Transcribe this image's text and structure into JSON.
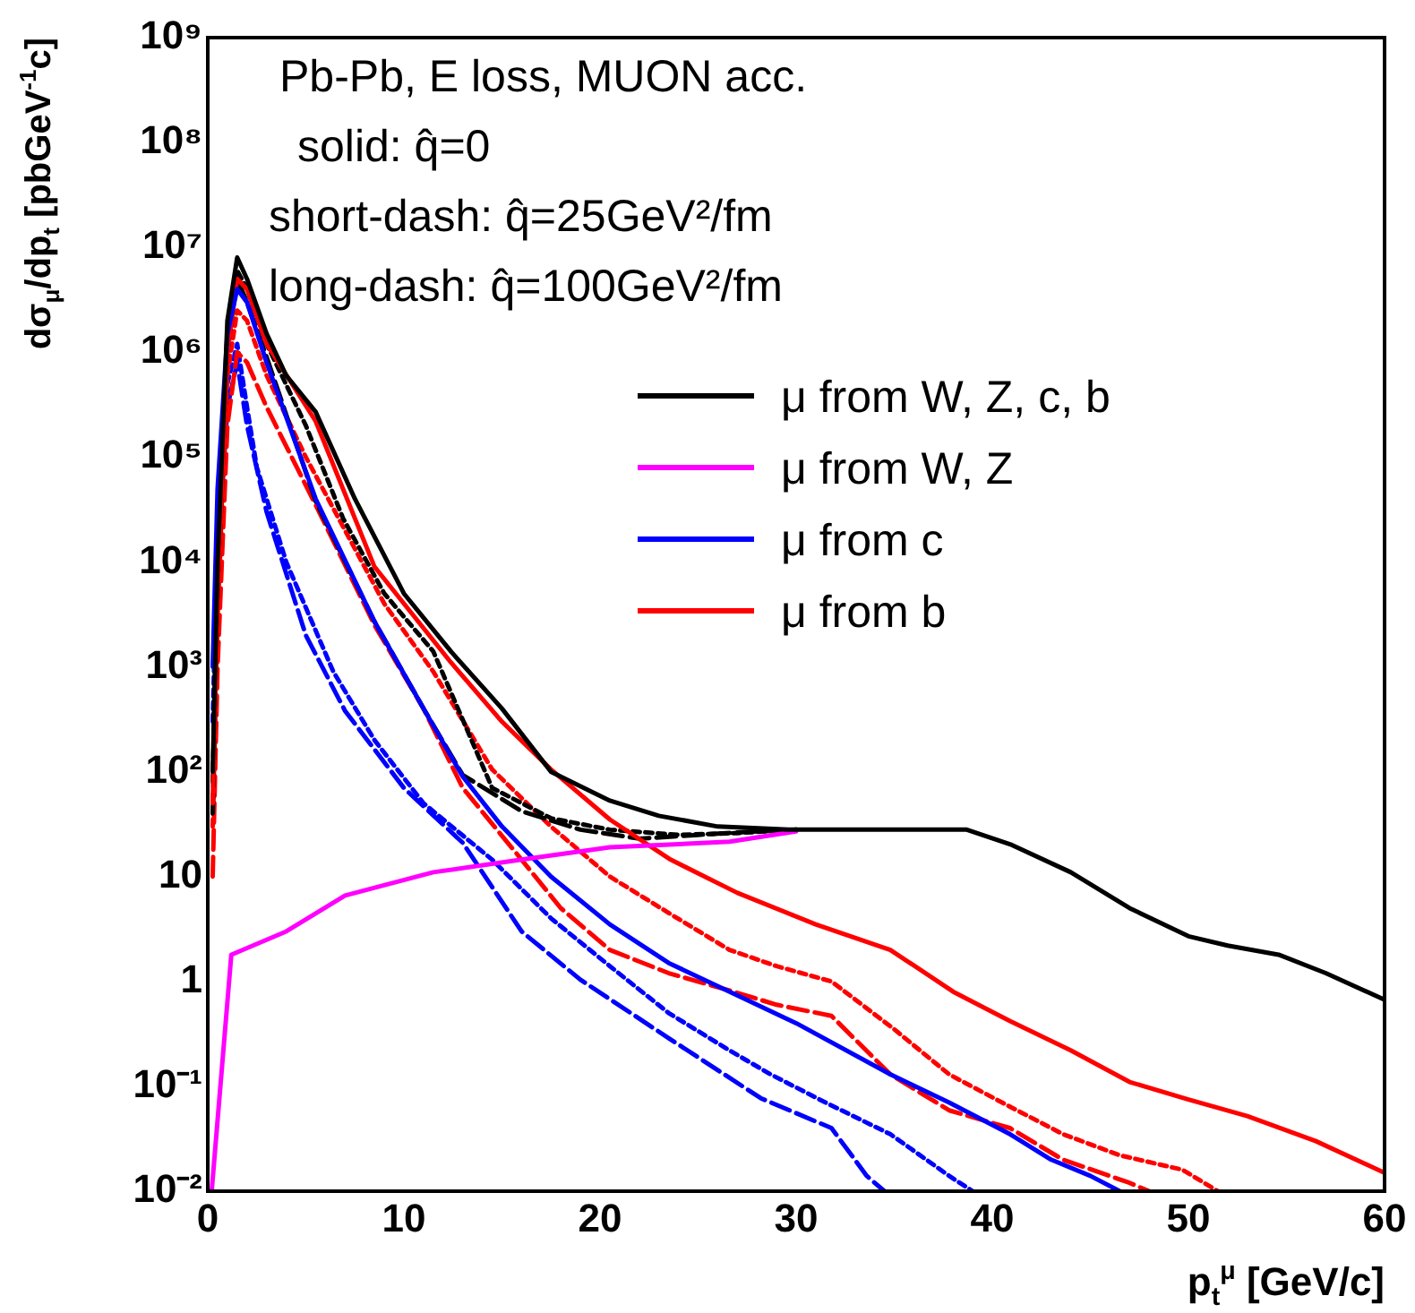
{
  "chart_data": {
    "type": "line",
    "xlabel": "p$_{t}$$^{μ}$ [GeV/c]",
    "ylabel": "dσ$_{μ}$/dp$_{t}$ [pbGeV$^{-1}$c]",
    "annotations": [
      "Pb-Pb, E loss, MUON acc.",
      "solid: q̂=0",
      "short-dash: q̂=25GeV²/fm",
      "long-dash: q̂=100GeV²/fm"
    ],
    "log": "y",
    "legend": "top right",
    "marker": "none",
    "xlim": [
      0,
      60
    ],
    "xticks": [
      0,
      10,
      20,
      30,
      40,
      50,
      60
    ],
    "ylim": [
      0.01,
      1000000000
    ],
    "yticks": [
      {
        "value": 0.01,
        "label": "10⁻²"
      },
      {
        "value": 0.1,
        "label": "10⁻¹"
      },
      1,
      10,
      {
        "value": 100,
        "label": "10²"
      },
      {
        "value": 1000,
        "label": "10³"
      },
      {
        "value": 10000,
        "label": "10⁴"
      },
      {
        "value": 100000,
        "label": "10⁵"
      },
      {
        "value": 1000000,
        "label": "10⁶"
      },
      {
        "value": 10000000,
        "label": "10⁷"
      },
      {
        "value": 100000000,
        "label": "10⁸"
      },
      {
        "value": 1000000000,
        "label": "10⁹"
      }
    ],
    "series": [
      {
        "name": "μ from W, Z, c, b",
        "color": "#000000",
        "line_style": "solid",
        "x": [
          0.25,
          0.5,
          1,
          1.5,
          2,
          3,
          4,
          5.5,
          7.5,
          10,
          12.4,
          15,
          17.5,
          20.5,
          23,
          26,
          29.6,
          35,
          38.7,
          41,
          44,
          47,
          50,
          52,
          54.6,
          57,
          60
        ],
        "values": [
          100,
          10000,
          2000000,
          8000000,
          5000000,
          1500000,
          600000,
          270000,
          40000,
          5000,
          1400,
          400,
          100,
          53,
          38,
          30,
          28,
          28,
          28,
          20,
          11,
          5,
          2.7,
          2.2,
          1.8,
          1.2,
          0.67
        ]
      },
      {
        "name": "μ from W, Z",
        "color": "#ff00ff",
        "line_style": "solid",
        "x": [
          0.2,
          0.6,
          1.2,
          4,
          7,
          11.5,
          16,
          20.5,
          26.6,
          30
        ],
        "values": [
          0.01,
          0.08,
          1.8,
          3,
          6.6,
          11,
          14.5,
          19,
          21.5,
          27
        ]
      },
      {
        "name": "μ from c",
        "color": "#0000ff",
        "line_style": "solid",
        "x": [
          0.25,
          0.5,
          1,
          1.5,
          2,
          3,
          5.5,
          8.5,
          11,
          13,
          15,
          17.5,
          20.5,
          23.5,
          26.6,
          30,
          34.8,
          37.8,
          40.9,
          43,
          45,
          46.5
        ],
        "values": [
          1000,
          50000,
          1500000,
          4000000,
          3000000,
          800000,
          40000,
          2700,
          400,
          90,
          30,
          10,
          3.5,
          1.5,
          0.8,
          0.4,
          0.13,
          0.07,
          0.035,
          0.02,
          0.014,
          0.01
        ]
      },
      {
        "name": "μ from b",
        "color": "#ff0000",
        "line_style": "solid",
        "x": [
          0.25,
          0.5,
          1,
          1.5,
          2,
          3,
          5.5,
          8.5,
          12.4,
          15,
          17.5,
          20.5,
          23.6,
          27,
          31,
          34.8,
          38,
          40.9,
          44,
          47,
          50,
          53,
          56.5,
          60
        ],
        "values": [
          50,
          5000,
          1000000,
          5000000,
          4000000,
          1200000,
          220000,
          9000,
          1100,
          300,
          105,
          35,
          14.5,
          7,
          3.5,
          2,
          0.8,
          0.42,
          0.22,
          0.11,
          0.075,
          0.052,
          0.03,
          0.015
        ]
      },
      {
        "color": "#000000",
        "line_style": "dotted",
        "x": [
          0.25,
          0.5,
          1,
          1.5,
          2,
          3,
          5,
          6.9,
          9,
          11.5,
          14.5,
          17.5,
          20.5,
          24,
          27,
          30
        ],
        "values": [
          80,
          8000,
          1500000,
          6000000,
          4000000,
          1200000,
          200000,
          26000,
          5000,
          1400,
          70,
          36,
          28,
          25,
          26,
          28
        ]
      },
      {
        "color": "#000000",
        "line_style": "dashed",
        "x": [
          0.25,
          0.5,
          1,
          1.5,
          2,
          3,
          5.5,
          8.5,
          11,
          13,
          16,
          19,
          22,
          25,
          28,
          30
        ],
        "values": [
          40,
          5000,
          1000000,
          5000000,
          3000000,
          900000,
          38000,
          2700,
          400,
          93,
          42,
          28,
          23,
          25,
          27,
          28
        ]
      },
      {
        "color": "#ff0000",
        "line_style": "dotted",
        "x": [
          0.25,
          0.5,
          1,
          1.5,
          2,
          3,
          5,
          7,
          9,
          11.5,
          14.5,
          17.5,
          20.5,
          23.5,
          26.6,
          29,
          31.8,
          35,
          37.8,
          40.5,
          43.6,
          46.5,
          49.7,
          51.5
        ],
        "values": [
          30,
          3000,
          600000,
          2500000,
          2000000,
          600000,
          100000,
          20000,
          4000,
          900,
          105,
          30,
          10,
          4.5,
          2,
          1.4,
          1,
          0.35,
          0.13,
          0.07,
          0.035,
          0.022,
          0.016,
          0.01
        ]
      },
      {
        "color": "#ff0000",
        "line_style": "dashed",
        "x": [
          0.25,
          0.5,
          1,
          1.5,
          2,
          3,
          5.5,
          8.5,
          11,
          13,
          16,
          18,
          20.5,
          23.5,
          26.6,
          29,
          31.8,
          34.8,
          37.8,
          40.9,
          43.6,
          47,
          48
        ],
        "values": [
          10,
          1000,
          200000,
          1000000,
          800000,
          300000,
          35000,
          2500,
          400,
          70,
          14.5,
          5,
          2,
          1.2,
          0.82,
          0.6,
          0.47,
          0.13,
          0.059,
          0.04,
          0.02,
          0.012,
          0.01
        ]
      },
      {
        "color": "#0000ff",
        "line_style": "dotted",
        "x": [
          0.25,
          0.5,
          1,
          1.5,
          2,
          2.5,
          4,
          6.4,
          8.5,
          11,
          14.5,
          17.5,
          20.5,
          23.5,
          26.6,
          28.7,
          31.5,
          34.8,
          37.8,
          39
        ],
        "values": [
          300,
          20000,
          500000,
          1200000,
          300000,
          80000,
          10000,
          900,
          200,
          50,
          14.5,
          4,
          1.4,
          0.5,
          0.22,
          0.13,
          0.07,
          0.035,
          0.014,
          0.01
        ]
      },
      {
        "color": "#0000ff",
        "line_style": "dashed",
        "x": [
          0.5,
          1,
          1.5,
          2,
          3,
          5,
          7,
          10,
          13,
          16,
          19,
          23.6,
          28.2,
          31.8,
          33.6,
          34.5
        ],
        "values": [
          10000,
          300000,
          800000,
          200000,
          30000,
          2000,
          380,
          70,
          21,
          3,
          1.04,
          0.28,
          0.077,
          0.04,
          0.014,
          0.01
        ]
      }
    ]
  }
}
